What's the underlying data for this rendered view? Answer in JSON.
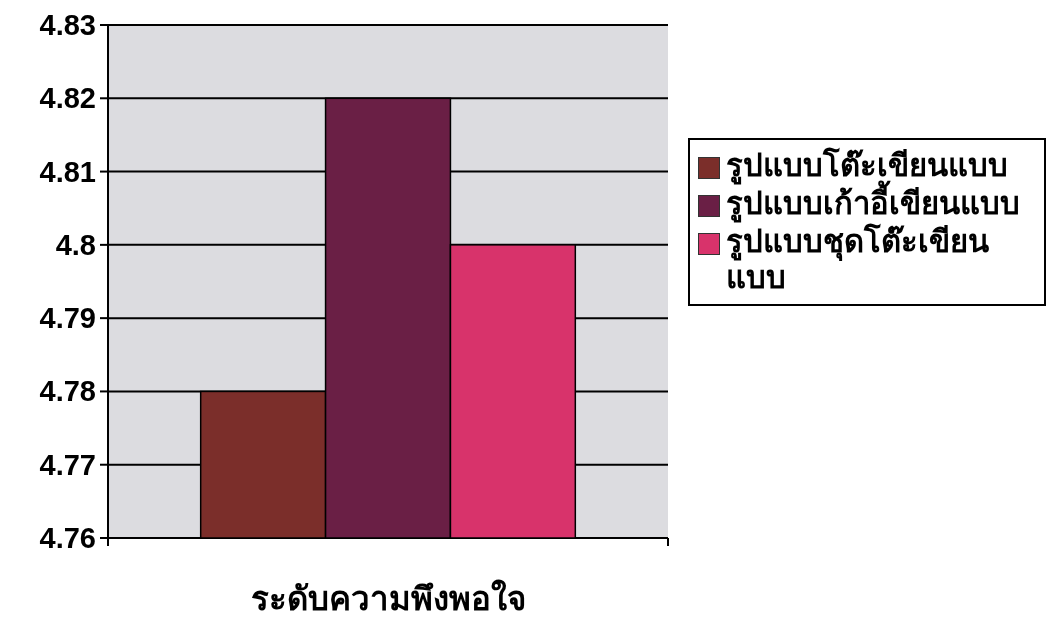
{
  "chart_data": {
    "type": "bar",
    "categories": [
      null
    ],
    "xlabel": "ระดับความพึงพอใจ",
    "series": [
      {
        "name": "รูปแบบโต๊ะเขียนแบบ",
        "color": "#7b2e2a",
        "values": [
          4.78
        ]
      },
      {
        "name": "รูปแบบเก้าอี้เขียนแบบ",
        "color": "#6a1f45",
        "values": [
          4.82
        ]
      },
      {
        "name": "รูปแบบชุดโต๊ะเขียนแบบ",
        "color": "#d8336b",
        "values": [
          4.8
        ]
      }
    ],
    "ylim": [
      4.76,
      4.83
    ],
    "yticks": [
      4.76,
      4.77,
      4.78,
      4.79,
      4.8,
      4.81,
      4.82,
      4.83
    ],
    "grid": "y",
    "legend": "right"
  }
}
